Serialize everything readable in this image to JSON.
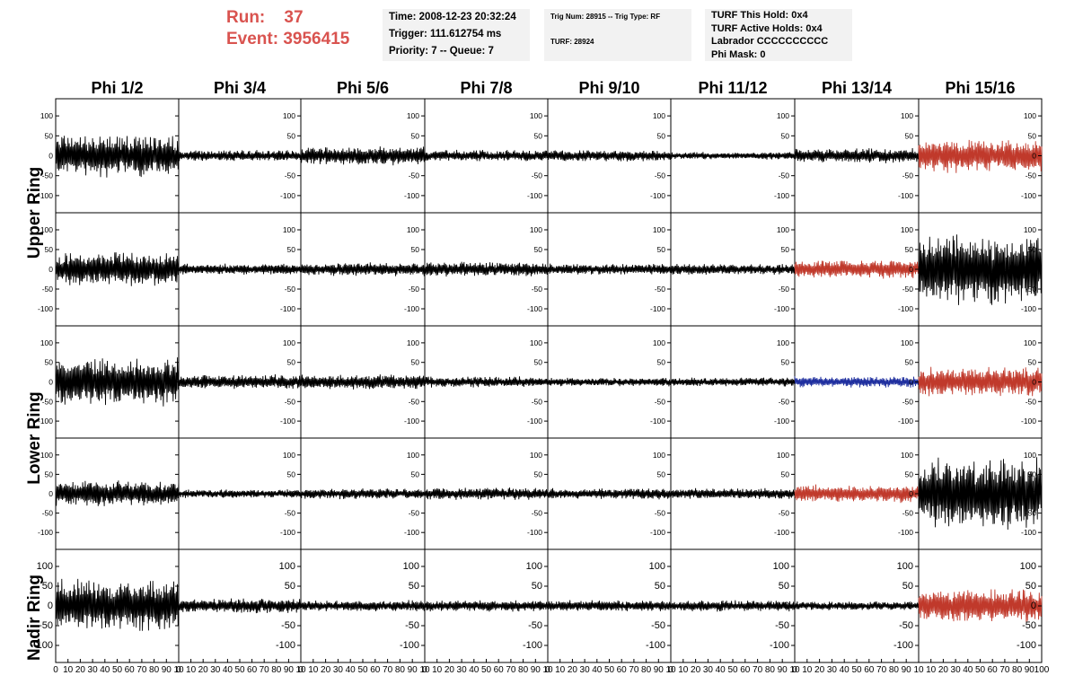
{
  "header": {
    "run_label": "Run:",
    "run_value": "37",
    "event_label": "Event:",
    "event_value": "3956415",
    "accent_color": "#d9534f"
  },
  "info": {
    "time": "Time: 2008-12-23 20:32:24",
    "trigger": "Trigger: 111.612754 ms",
    "priority": "Priority: 7 -- Queue: 7",
    "trig_num": "Trig Num: 28915 -- Trig Type: RF",
    "turf": "TURF: 28924",
    "turf_this_hold": "TURF This Hold: 0x4",
    "turf_active_holds": "TURF Active Holds: 0x4",
    "labrador": "Labrador CCCCCCCCCC",
    "phi_mask": "Phi Mask: 0"
  },
  "columns": [
    "Phi 1/2",
    "Phi 3/4",
    "Phi 5/6",
    "Phi 7/8",
    "Phi 9/10",
    "Phi 11/12",
    "Phi 13/14",
    "Phi 15/16"
  ],
  "ring_labels": [
    "Upper Ring",
    "Lower Ring",
    "Nadir Ring"
  ],
  "colors": {
    "normal": "#000000",
    "red": "#c0392b",
    "blue": "#1f2f9f"
  },
  "chart_data": {
    "type": "line",
    "xlim": [
      0,
      100
    ],
    "ylim": [
      -125,
      125
    ],
    "x_ticks": [
      0,
      10,
      20,
      30,
      40,
      50,
      60,
      70,
      80,
      90,
      100
    ],
    "x_tick_labels_last": [
      "10",
      "20",
      "30",
      "40",
      "50",
      "60",
      "70",
      "80",
      "90",
      "100"
    ],
    "x_tick_labels_first": [
      "0",
      "10",
      "20",
      "30",
      "40",
      "50",
      "60",
      "70",
      "80",
      "90",
      "10"
    ],
    "x_tick_labels_mid": [
      "0",
      "10",
      "20",
      "30",
      "40",
      "50",
      "60",
      "70",
      "80",
      "90",
      "10"
    ],
    "y_ticks": [
      -100,
      -50,
      0,
      50,
      100
    ],
    "y_tick_labels": [
      "-100",
      "-50",
      "0",
      "50",
      "100"
    ],
    "waveform_samples": 100,
    "panels": [
      [
        {
          "amplitude": 55,
          "color": "normal"
        },
        {
          "amplitude": 15,
          "color": "normal"
        },
        {
          "amplitude": 25,
          "color": "normal"
        },
        {
          "amplitude": 15,
          "color": "normal"
        },
        {
          "amplitude": 15,
          "color": "normal"
        },
        {
          "amplitude": 10,
          "color": "normal"
        },
        {
          "amplitude": 20,
          "color": "normal"
        },
        {
          "amplitude": 45,
          "color": "red"
        }
      ],
      [
        {
          "amplitude": 45,
          "color": "normal"
        },
        {
          "amplitude": 15,
          "color": "normal"
        },
        {
          "amplitude": 18,
          "color": "normal"
        },
        {
          "amplitude": 20,
          "color": "normal"
        },
        {
          "amplitude": 15,
          "color": "normal"
        },
        {
          "amplitude": 15,
          "color": "normal"
        },
        {
          "amplitude": 25,
          "color": "red"
        },
        {
          "amplitude": 100,
          "color": "normal"
        }
      ],
      [
        {
          "amplitude": 65,
          "color": "normal"
        },
        {
          "amplitude": 20,
          "color": "normal"
        },
        {
          "amplitude": 20,
          "color": "normal"
        },
        {
          "amplitude": 15,
          "color": "normal"
        },
        {
          "amplitude": 12,
          "color": "normal"
        },
        {
          "amplitude": 12,
          "color": "normal"
        },
        {
          "amplitude": 15,
          "color": "blue"
        },
        {
          "amplitude": 40,
          "color": "red"
        }
      ],
      [
        {
          "amplitude": 35,
          "color": "normal"
        },
        {
          "amplitude": 12,
          "color": "normal"
        },
        {
          "amplitude": 15,
          "color": "normal"
        },
        {
          "amplitude": 18,
          "color": "normal"
        },
        {
          "amplitude": 15,
          "color": "normal"
        },
        {
          "amplitude": 15,
          "color": "normal"
        },
        {
          "amplitude": 25,
          "color": "red"
        },
        {
          "amplitude": 100,
          "color": "normal"
        }
      ],
      [
        {
          "amplitude": 70,
          "color": "normal"
        },
        {
          "amplitude": 20,
          "color": "normal"
        },
        {
          "amplitude": 15,
          "color": "normal"
        },
        {
          "amplitude": 15,
          "color": "normal"
        },
        {
          "amplitude": 15,
          "color": "normal"
        },
        {
          "amplitude": 15,
          "color": "normal"
        },
        {
          "amplitude": 12,
          "color": "normal"
        },
        {
          "amplitude": 45,
          "color": "red"
        }
      ]
    ]
  }
}
